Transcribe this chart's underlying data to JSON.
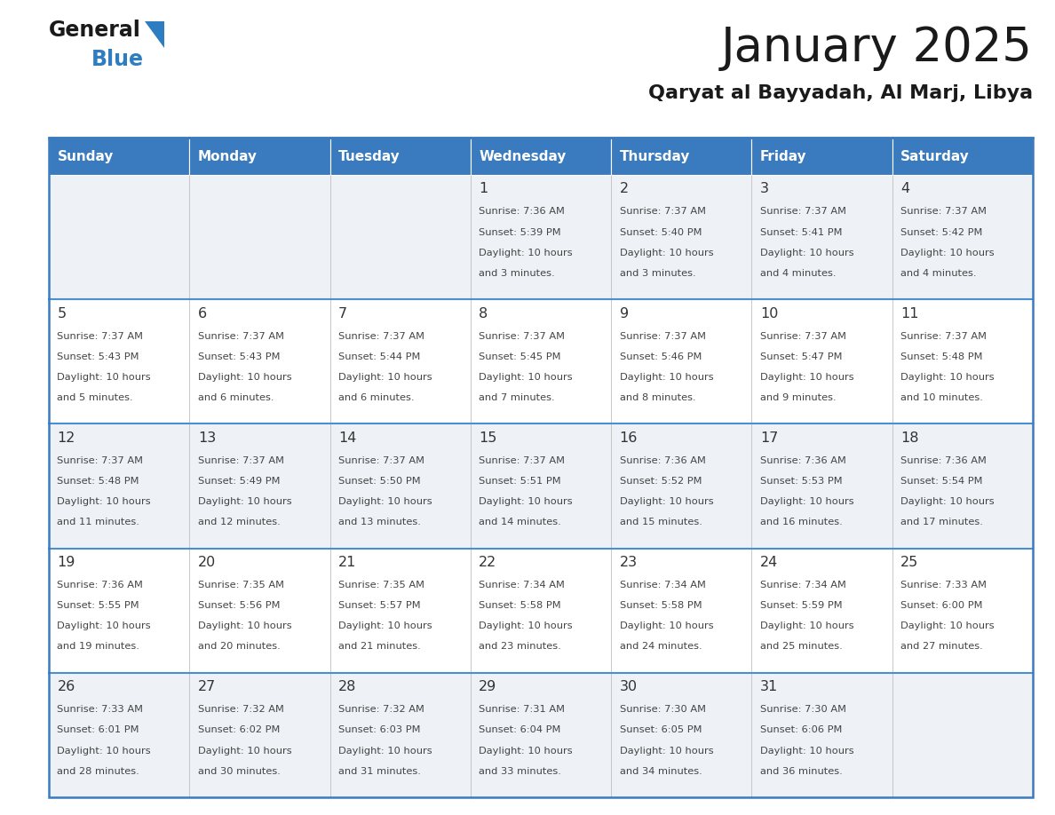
{
  "title": "January 2025",
  "subtitle": "Qaryat al Bayyadah, Al Marj, Libya",
  "header_color": "#3a7bbf",
  "header_text_color": "#ffffff",
  "cell_bg_light": "#eef2f7",
  "cell_bg_white": "#ffffff",
  "border_color": "#3a7bbf",
  "row_sep_color": "#4a8fd0",
  "text_color": "#444444",
  "day_num_color": "#333333",
  "days_of_week": [
    "Sunday",
    "Monday",
    "Tuesday",
    "Wednesday",
    "Thursday",
    "Friday",
    "Saturday"
  ],
  "calendar_data": [
    [
      {
        "day": "",
        "sunrise": "",
        "sunset": "",
        "daylight_h": "",
        "daylight_m": ""
      },
      {
        "day": "",
        "sunrise": "",
        "sunset": "",
        "daylight_h": "",
        "daylight_m": ""
      },
      {
        "day": "",
        "sunrise": "",
        "sunset": "",
        "daylight_h": "",
        "daylight_m": ""
      },
      {
        "day": "1",
        "sunrise": "7:36 AM",
        "sunset": "5:39 PM",
        "daylight_h": "10",
        "daylight_m": "3"
      },
      {
        "day": "2",
        "sunrise": "7:37 AM",
        "sunset": "5:40 PM",
        "daylight_h": "10",
        "daylight_m": "3"
      },
      {
        "day": "3",
        "sunrise": "7:37 AM",
        "sunset": "5:41 PM",
        "daylight_h": "10",
        "daylight_m": "4"
      },
      {
        "day": "4",
        "sunrise": "7:37 AM",
        "sunset": "5:42 PM",
        "daylight_h": "10",
        "daylight_m": "4"
      }
    ],
    [
      {
        "day": "5",
        "sunrise": "7:37 AM",
        "sunset": "5:43 PM",
        "daylight_h": "10",
        "daylight_m": "5"
      },
      {
        "day": "6",
        "sunrise": "7:37 AM",
        "sunset": "5:43 PM",
        "daylight_h": "10",
        "daylight_m": "6"
      },
      {
        "day": "7",
        "sunrise": "7:37 AM",
        "sunset": "5:44 PM",
        "daylight_h": "10",
        "daylight_m": "6"
      },
      {
        "day": "8",
        "sunrise": "7:37 AM",
        "sunset": "5:45 PM",
        "daylight_h": "10",
        "daylight_m": "7"
      },
      {
        "day": "9",
        "sunrise": "7:37 AM",
        "sunset": "5:46 PM",
        "daylight_h": "10",
        "daylight_m": "8"
      },
      {
        "day": "10",
        "sunrise": "7:37 AM",
        "sunset": "5:47 PM",
        "daylight_h": "10",
        "daylight_m": "9"
      },
      {
        "day": "11",
        "sunrise": "7:37 AM",
        "sunset": "5:48 PM",
        "daylight_h": "10",
        "daylight_m": "10"
      }
    ],
    [
      {
        "day": "12",
        "sunrise": "7:37 AM",
        "sunset": "5:48 PM",
        "daylight_h": "10",
        "daylight_m": "11"
      },
      {
        "day": "13",
        "sunrise": "7:37 AM",
        "sunset": "5:49 PM",
        "daylight_h": "10",
        "daylight_m": "12"
      },
      {
        "day": "14",
        "sunrise": "7:37 AM",
        "sunset": "5:50 PM",
        "daylight_h": "10",
        "daylight_m": "13"
      },
      {
        "day": "15",
        "sunrise": "7:37 AM",
        "sunset": "5:51 PM",
        "daylight_h": "10",
        "daylight_m": "14"
      },
      {
        "day": "16",
        "sunrise": "7:36 AM",
        "sunset": "5:52 PM",
        "daylight_h": "10",
        "daylight_m": "15"
      },
      {
        "day": "17",
        "sunrise": "7:36 AM",
        "sunset": "5:53 PM",
        "daylight_h": "10",
        "daylight_m": "16"
      },
      {
        "day": "18",
        "sunrise": "7:36 AM",
        "sunset": "5:54 PM",
        "daylight_h": "10",
        "daylight_m": "17"
      }
    ],
    [
      {
        "day": "19",
        "sunrise": "7:36 AM",
        "sunset": "5:55 PM",
        "daylight_h": "10",
        "daylight_m": "19"
      },
      {
        "day": "20",
        "sunrise": "7:35 AM",
        "sunset": "5:56 PM",
        "daylight_h": "10",
        "daylight_m": "20"
      },
      {
        "day": "21",
        "sunrise": "7:35 AM",
        "sunset": "5:57 PM",
        "daylight_h": "10",
        "daylight_m": "21"
      },
      {
        "day": "22",
        "sunrise": "7:34 AM",
        "sunset": "5:58 PM",
        "daylight_h": "10",
        "daylight_m": "23"
      },
      {
        "day": "23",
        "sunrise": "7:34 AM",
        "sunset": "5:58 PM",
        "daylight_h": "10",
        "daylight_m": "24"
      },
      {
        "day": "24",
        "sunrise": "7:34 AM",
        "sunset": "5:59 PM",
        "daylight_h": "10",
        "daylight_m": "25"
      },
      {
        "day": "25",
        "sunrise": "7:33 AM",
        "sunset": "6:00 PM",
        "daylight_h": "10",
        "daylight_m": "27"
      }
    ],
    [
      {
        "day": "26",
        "sunrise": "7:33 AM",
        "sunset": "6:01 PM",
        "daylight_h": "10",
        "daylight_m": "28"
      },
      {
        "day": "27",
        "sunrise": "7:32 AM",
        "sunset": "6:02 PM",
        "daylight_h": "10",
        "daylight_m": "30"
      },
      {
        "day": "28",
        "sunrise": "7:32 AM",
        "sunset": "6:03 PM",
        "daylight_h": "10",
        "daylight_m": "31"
      },
      {
        "day": "29",
        "sunrise": "7:31 AM",
        "sunset": "6:04 PM",
        "daylight_h": "10",
        "daylight_m": "33"
      },
      {
        "day": "30",
        "sunrise": "7:30 AM",
        "sunset": "6:05 PM",
        "daylight_h": "10",
        "daylight_m": "34"
      },
      {
        "day": "31",
        "sunrise": "7:30 AM",
        "sunset": "6:06 PM",
        "daylight_h": "10",
        "daylight_m": "36"
      },
      {
        "day": "",
        "sunrise": "",
        "sunset": "",
        "daylight_h": "",
        "daylight_m": ""
      }
    ]
  ],
  "fig_width": 11.88,
  "fig_height": 9.18,
  "dpi": 100
}
